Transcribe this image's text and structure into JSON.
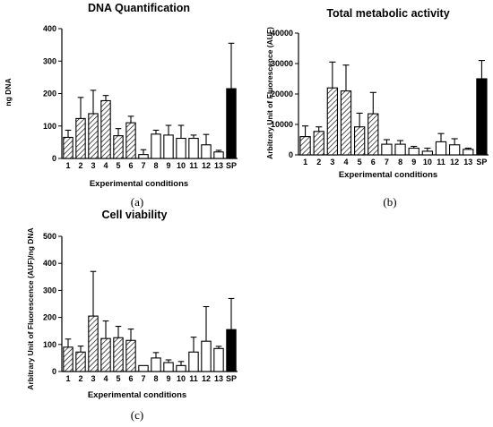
{
  "chart_data": [
    {
      "panel": "(a)",
      "type": "bar",
      "title": "DNA Quantification",
      "ylabel": "ng DNA",
      "xlabel": "Experimental conditions",
      "categories": [
        "1",
        "2",
        "3",
        "4",
        "5",
        "6",
        "7",
        "8",
        "9",
        "10",
        "11",
        "12",
        "13",
        "SP"
      ],
      "values": [
        65,
        123,
        138,
        178,
        70,
        110,
        12,
        75,
        72,
        62,
        62,
        42,
        20,
        215
      ],
      "errors": [
        22,
        65,
        72,
        16,
        22,
        20,
        15,
        12,
        30,
        40,
        10,
        32,
        5,
        140
      ],
      "ylim": [
        0,
        400
      ],
      "yticks": [
        0,
        100,
        200,
        300,
        400
      ],
      "fills": [
        "hatch",
        "hatch",
        "hatch",
        "hatch",
        "hatch",
        "hatch",
        "white",
        "white",
        "white",
        "white",
        "white",
        "white",
        "white",
        "black"
      ]
    },
    {
      "panel": "(b)",
      "type": "bar",
      "title": "Total metabolic activity",
      "ylabel": "Arbitrary Unit of Fluorescence (AUF)",
      "xlabel": "Experimental conditions",
      "categories": [
        "1",
        "2",
        "3",
        "4",
        "5",
        "6",
        "7",
        "8",
        "9",
        "10",
        "11",
        "12",
        "13",
        "SP"
      ],
      "values": [
        6000,
        7700,
        22000,
        21000,
        9200,
        13500,
        3500,
        3500,
        2200,
        1200,
        4300,
        3300,
        1800,
        25000
      ],
      "errors": [
        3500,
        1500,
        8500,
        8500,
        4500,
        7000,
        1500,
        1200,
        600,
        1000,
        2700,
        2000,
        400,
        6000
      ],
      "ylim": [
        0,
        40000
      ],
      "yticks": [
        0,
        10000,
        20000,
        30000,
        40000
      ],
      "fills": [
        "hatch",
        "hatch",
        "hatch",
        "hatch",
        "hatch",
        "hatch",
        "white",
        "white",
        "white",
        "white",
        "white",
        "white",
        "white",
        "black"
      ]
    },
    {
      "panel": "(c)",
      "type": "bar",
      "title": "Cell viability",
      "ylabel": "Arbitrary Unit of Fluorescence (AUF)/ng DNA",
      "xlabel": "Experimental conditions",
      "categories": [
        "1",
        "2",
        "3",
        "4",
        "5",
        "6",
        "7",
        "8",
        "9",
        "10",
        "11",
        "12",
        "13",
        "SP"
      ],
      "values": [
        90,
        72,
        205,
        122,
        125,
        115,
        22,
        50,
        33,
        22,
        72,
        112,
        85,
        155
      ],
      "errors": [
        30,
        22,
        165,
        65,
        42,
        42,
        0,
        20,
        10,
        15,
        55,
        128,
        8,
        115
      ],
      "ylim": [
        0,
        500
      ],
      "yticks": [
        0,
        100,
        200,
        300,
        400,
        500
      ],
      "fills": [
        "hatch",
        "hatch",
        "hatch",
        "hatch",
        "hatch",
        "hatch",
        "white",
        "white",
        "white",
        "white",
        "white",
        "white",
        "white",
        "black"
      ]
    }
  ]
}
